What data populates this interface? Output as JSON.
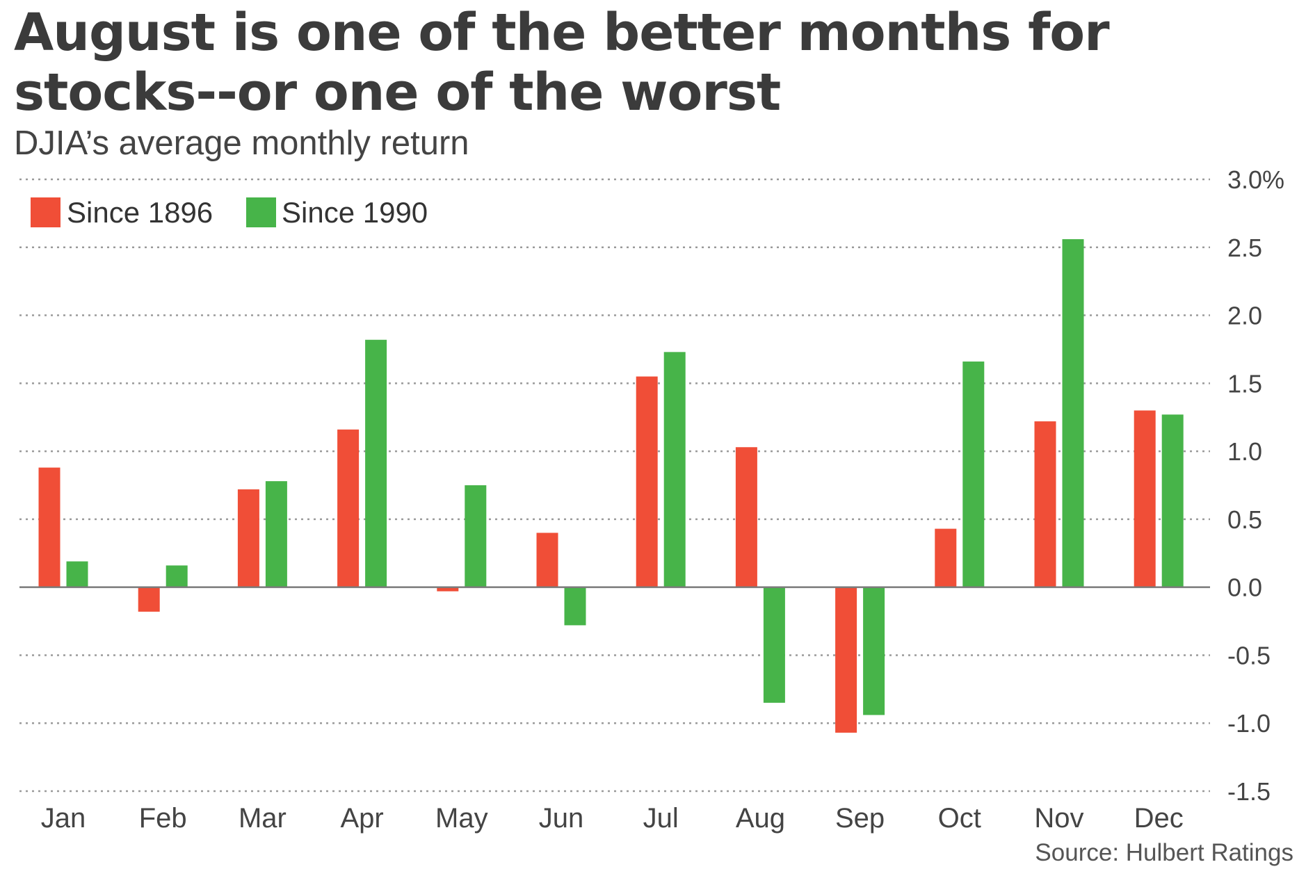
{
  "chart_data": {
    "type": "bar",
    "title": "August is one of the better months for stocks--or one of the worst",
    "subtitle": "DJIA’s average monthly return",
    "categories": [
      "Jan",
      "Feb",
      "Mar",
      "Apr",
      "May",
      "Jun",
      "Jul",
      "Aug",
      "Sep",
      "Oct",
      "Nov",
      "Dec"
    ],
    "series": [
      {
        "name": "Since 1896",
        "color": "#f04e37",
        "values": [
          0.88,
          -0.18,
          0.72,
          1.16,
          -0.03,
          0.4,
          1.55,
          1.03,
          -1.07,
          0.43,
          1.22,
          1.3
        ]
      },
      {
        "name": "Since 1990",
        "color": "#47b449",
        "values": [
          0.19,
          0.16,
          0.78,
          1.82,
          0.75,
          -0.28,
          1.73,
          -0.85,
          -0.94,
          1.66,
          2.56,
          1.27
        ]
      }
    ],
    "ylim": [
      -1.5,
      3.0
    ],
    "yticks": [
      "3.0%",
      "2.5",
      "2.0",
      "1.5",
      "1.0",
      "0.5",
      "0.0",
      "-0.5",
      "-1.0",
      "-1.5"
    ],
    "ytick_values": [
      3.0,
      2.5,
      2.0,
      1.5,
      1.0,
      0.5,
      0.0,
      -0.5,
      -1.0,
      -1.5
    ],
    "grid": true,
    "legend_position": "top-left",
    "source": "Source: Hulbert Ratings"
  }
}
